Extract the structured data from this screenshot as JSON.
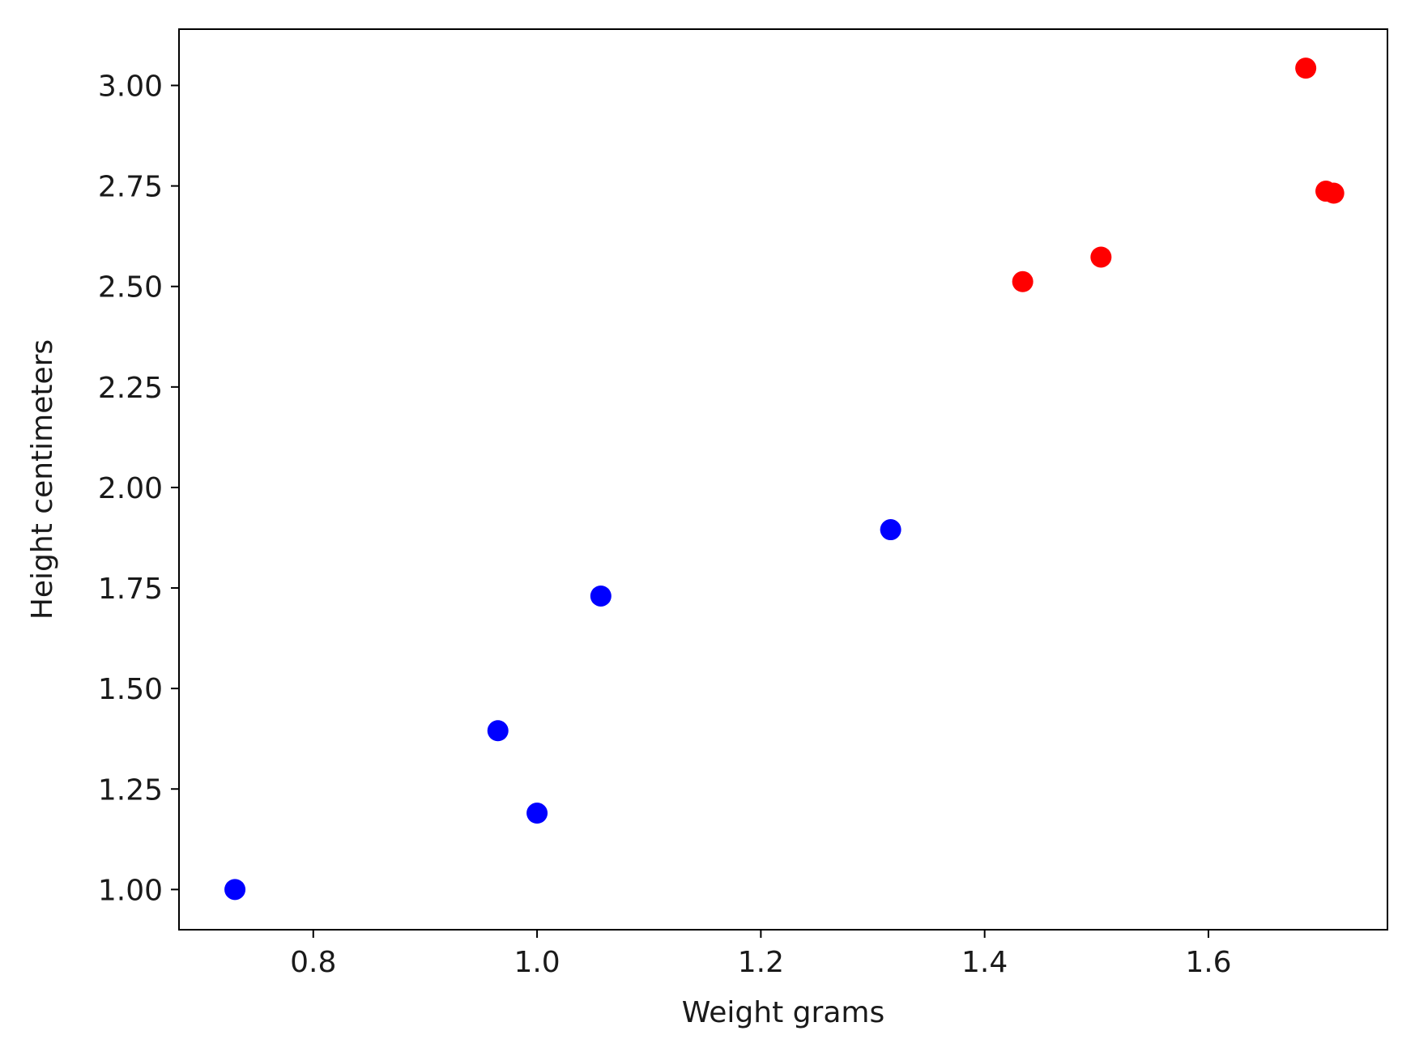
{
  "chart_data": {
    "type": "scatter",
    "title": "",
    "xlabel": "Weight grams",
    "ylabel": "Height centimeters",
    "xlim": [
      0.68,
      1.76
    ],
    "ylim": [
      0.9,
      3.14
    ],
    "xticks": [
      0.8,
      1.0,
      1.2,
      1.4,
      1.6
    ],
    "xtick_labels": [
      "0.8",
      "1.0",
      "1.2",
      "1.4",
      "1.6"
    ],
    "yticks": [
      1.0,
      1.25,
      1.5,
      1.75,
      2.0,
      2.25,
      2.5,
      2.75,
      3.0
    ],
    "ytick_labels": [
      "1.00",
      "1.25",
      "1.50",
      "1.75",
      "2.00",
      "2.25",
      "2.50",
      "2.75",
      "3.00"
    ],
    "grid": false,
    "series": [
      {
        "color": "#0000ff",
        "points": [
          {
            "x": 0.73,
            "y": 1.0
          },
          {
            "x": 0.965,
            "y": 1.395
          },
          {
            "x": 1.0,
            "y": 1.19
          },
          {
            "x": 1.057,
            "y": 1.73
          },
          {
            "x": 1.316,
            "y": 1.895
          }
        ]
      },
      {
        "color": "#ff0000",
        "points": [
          {
            "x": 1.434,
            "y": 2.512
          },
          {
            "x": 1.504,
            "y": 2.573
          },
          {
            "x": 1.687,
            "y": 3.043
          },
          {
            "x": 1.705,
            "y": 2.737
          },
          {
            "x": 1.712,
            "y": 2.732
          }
        ]
      }
    ]
  }
}
